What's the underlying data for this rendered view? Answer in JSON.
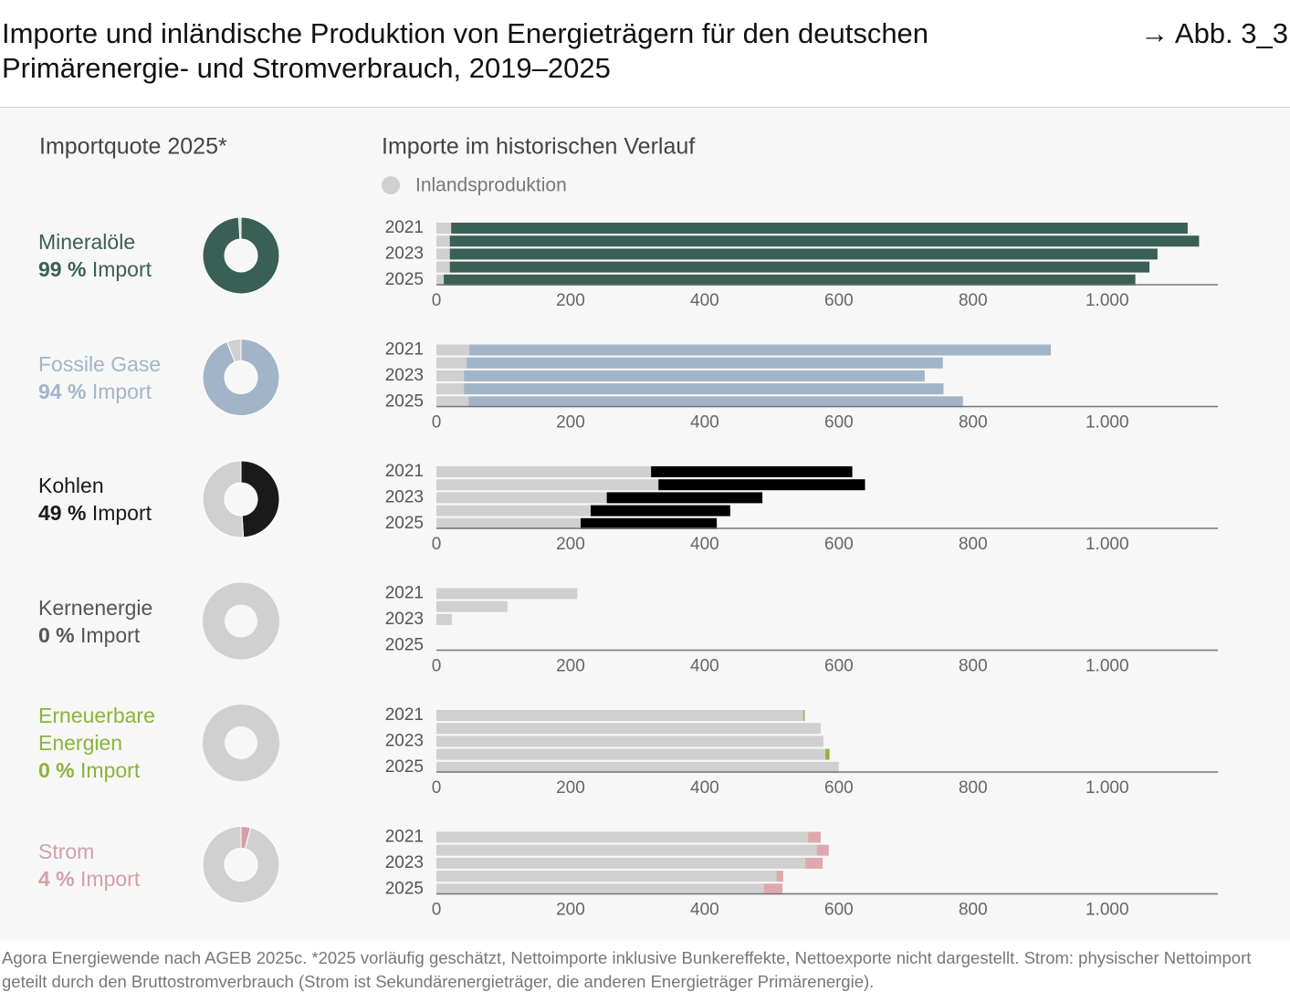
{
  "header": {
    "title": "Importe und inländische Produktion von Energieträgern für den deutschen Primärenergie- und Stromverbrauch, 2019–2025",
    "figure_ref": "→ Abb. 3_3"
  },
  "left_heading": "Importquote 2025*",
  "right_heading": "Importe im historischen Verlauf",
  "legend": {
    "label": "Inlandsproduktion",
    "color": "#d0d0d0"
  },
  "footnote": "Agora Energiewende nach AGEB 2025c. *2025 vorläufig geschätzt, Nettoimporte inklusive Bunkereffekte, Nettoexporte nicht dargestellt. Strom: physischer Nettoimport geteilt durch den Bruttostromverbrauch (Strom ist Sekundärenergieträger, die anderen Energieträger Primärenergie).",
  "chart_data": [
    {
      "type": "pie",
      "title": "Mineralöle",
      "categories": [
        "Import",
        null
      ],
      "values": [
        99,
        1
      ],
      "value_labels": [
        "99 %",
        null
      ],
      "colors": [
        "#3a5f55",
        "#d0d0d0"
      ]
    },
    {
      "type": "pie",
      "title": "Fossile Gase",
      "categories": [
        "Import",
        null
      ],
      "values": [
        94,
        6
      ],
      "value_labels": [
        "94 %",
        null
      ],
      "colors": [
        "#a2b5c8",
        "#d0d0d0"
      ]
    },
    {
      "type": "pie",
      "title": "Kohlen",
      "categories": [
        "Import",
        null
      ],
      "values": [
        49,
        51
      ],
      "value_labels": [
        "49 %",
        null
      ],
      "colors": [
        "#1a1a1a",
        "#d0d0d0"
      ]
    },
    {
      "type": "pie",
      "title": "Kernenergie",
      "categories": [
        "Import",
        null
      ],
      "values": [
        0,
        100
      ],
      "value_labels": [
        "0 %",
        null
      ],
      "colors": [
        "#555555",
        "#d0d0d0"
      ]
    },
    {
      "type": "pie",
      "title": "Erneuerbare Energien",
      "categories": [
        "Import",
        null
      ],
      "values": [
        0,
        100
      ],
      "value_labels": [
        "0 %",
        null
      ],
      "colors": [
        "#8ab43a",
        "#d0d0d0"
      ]
    },
    {
      "type": "pie",
      "title": "Strom",
      "categories": [
        "Import",
        null
      ],
      "values": [
        4,
        96
      ],
      "value_labels": [
        "4 %",
        null
      ],
      "colors": [
        "#d4a0a6",
        "#d0d0d0"
      ]
    },
    {
      "type": "bar",
      "categories": [
        "2021",
        null,
        "2023",
        null,
        "2025"
      ],
      "xlim": [
        0,
        1165
      ],
      "xticks": [
        0,
        200,
        400,
        600,
        800,
        {
          "value": 1000,
          "label": "1.000"
        }
      ],
      "series": [
        {
          "color": "#d0d0d0",
          "values": [
            22,
            20,
            20,
            20,
            11
          ]
        },
        {
          "color": "#3a5f55",
          "values": [
            1098,
            1117,
            1055,
            1043,
            1031
          ]
        }
      ]
    },
    {
      "type": "bar",
      "categories": [
        "2021",
        null,
        "2023",
        null,
        "2025"
      ],
      "xlim": [
        0,
        1165
      ],
      "xticks": [
        0,
        200,
        400,
        600,
        800,
        {
          "value": 1000,
          "label": "1.000"
        }
      ],
      "series": [
        {
          "color": "#d0d0d0",
          "values": [
            49,
            45,
            41,
            41,
            48
          ]
        },
        {
          "color": "#a2b5c8",
          "values": [
            867,
            710,
            687,
            715,
            737
          ]
        }
      ]
    },
    {
      "type": "bar",
      "categories": [
        "2021",
        null,
        "2023",
        null,
        "2025"
      ],
      "xlim": [
        0,
        1165
      ],
      "xticks": [
        0,
        200,
        400,
        600,
        800,
        {
          "value": 1000,
          "label": "1.000"
        }
      ],
      "series": [
        {
          "color": "#d0d0d0",
          "values": [
            320,
            331,
            254,
            230,
            215
          ]
        },
        {
          "color": "#000000",
          "values": [
            300,
            308,
            232,
            208,
            203
          ]
        }
      ]
    },
    {
      "type": "bar",
      "categories": [
        "2021",
        null,
        "2023",
        null,
        "2025"
      ],
      "xlim": [
        0,
        1165
      ],
      "xticks": [
        0,
        200,
        400,
        600,
        800,
        {
          "value": 1000,
          "label": "1.000"
        }
      ],
      "series": [
        {
          "color": "#d0d0d0",
          "values": [
            210,
            106,
            23,
            0,
            0
          ]
        },
        {
          "color": "#555555",
          "values": [
            0,
            0,
            0,
            0,
            0
          ]
        }
      ]
    },
    {
      "type": "bar",
      "categories": [
        "2021",
        null,
        "2023",
        null,
        "2025"
      ],
      "xlim": [
        0,
        1165
      ],
      "xticks": [
        0,
        200,
        400,
        600,
        800,
        {
          "value": 1000,
          "label": "1.000"
        }
      ],
      "series": [
        {
          "color": "#d0d0d0",
          "values": [
            547,
            573,
            577,
            580,
            600
          ]
        },
        {
          "color": "#8ab43a",
          "values": [
            2,
            0,
            0,
            6,
            0
          ]
        }
      ]
    },
    {
      "type": "bar",
      "categories": [
        "2021",
        null,
        "2023",
        null,
        "2025"
      ],
      "xlim": [
        0,
        1165
      ],
      "xticks": [
        0,
        200,
        400,
        600,
        800,
        {
          "value": 1000,
          "label": "1.000"
        }
      ],
      "series": [
        {
          "color": "#d0d0d0",
          "values": [
            554,
            567,
            550,
            507,
            488
          ]
        },
        {
          "color": "#e0a8ae",
          "values": [
            19,
            18,
            26,
            10,
            28
          ]
        }
      ]
    }
  ]
}
